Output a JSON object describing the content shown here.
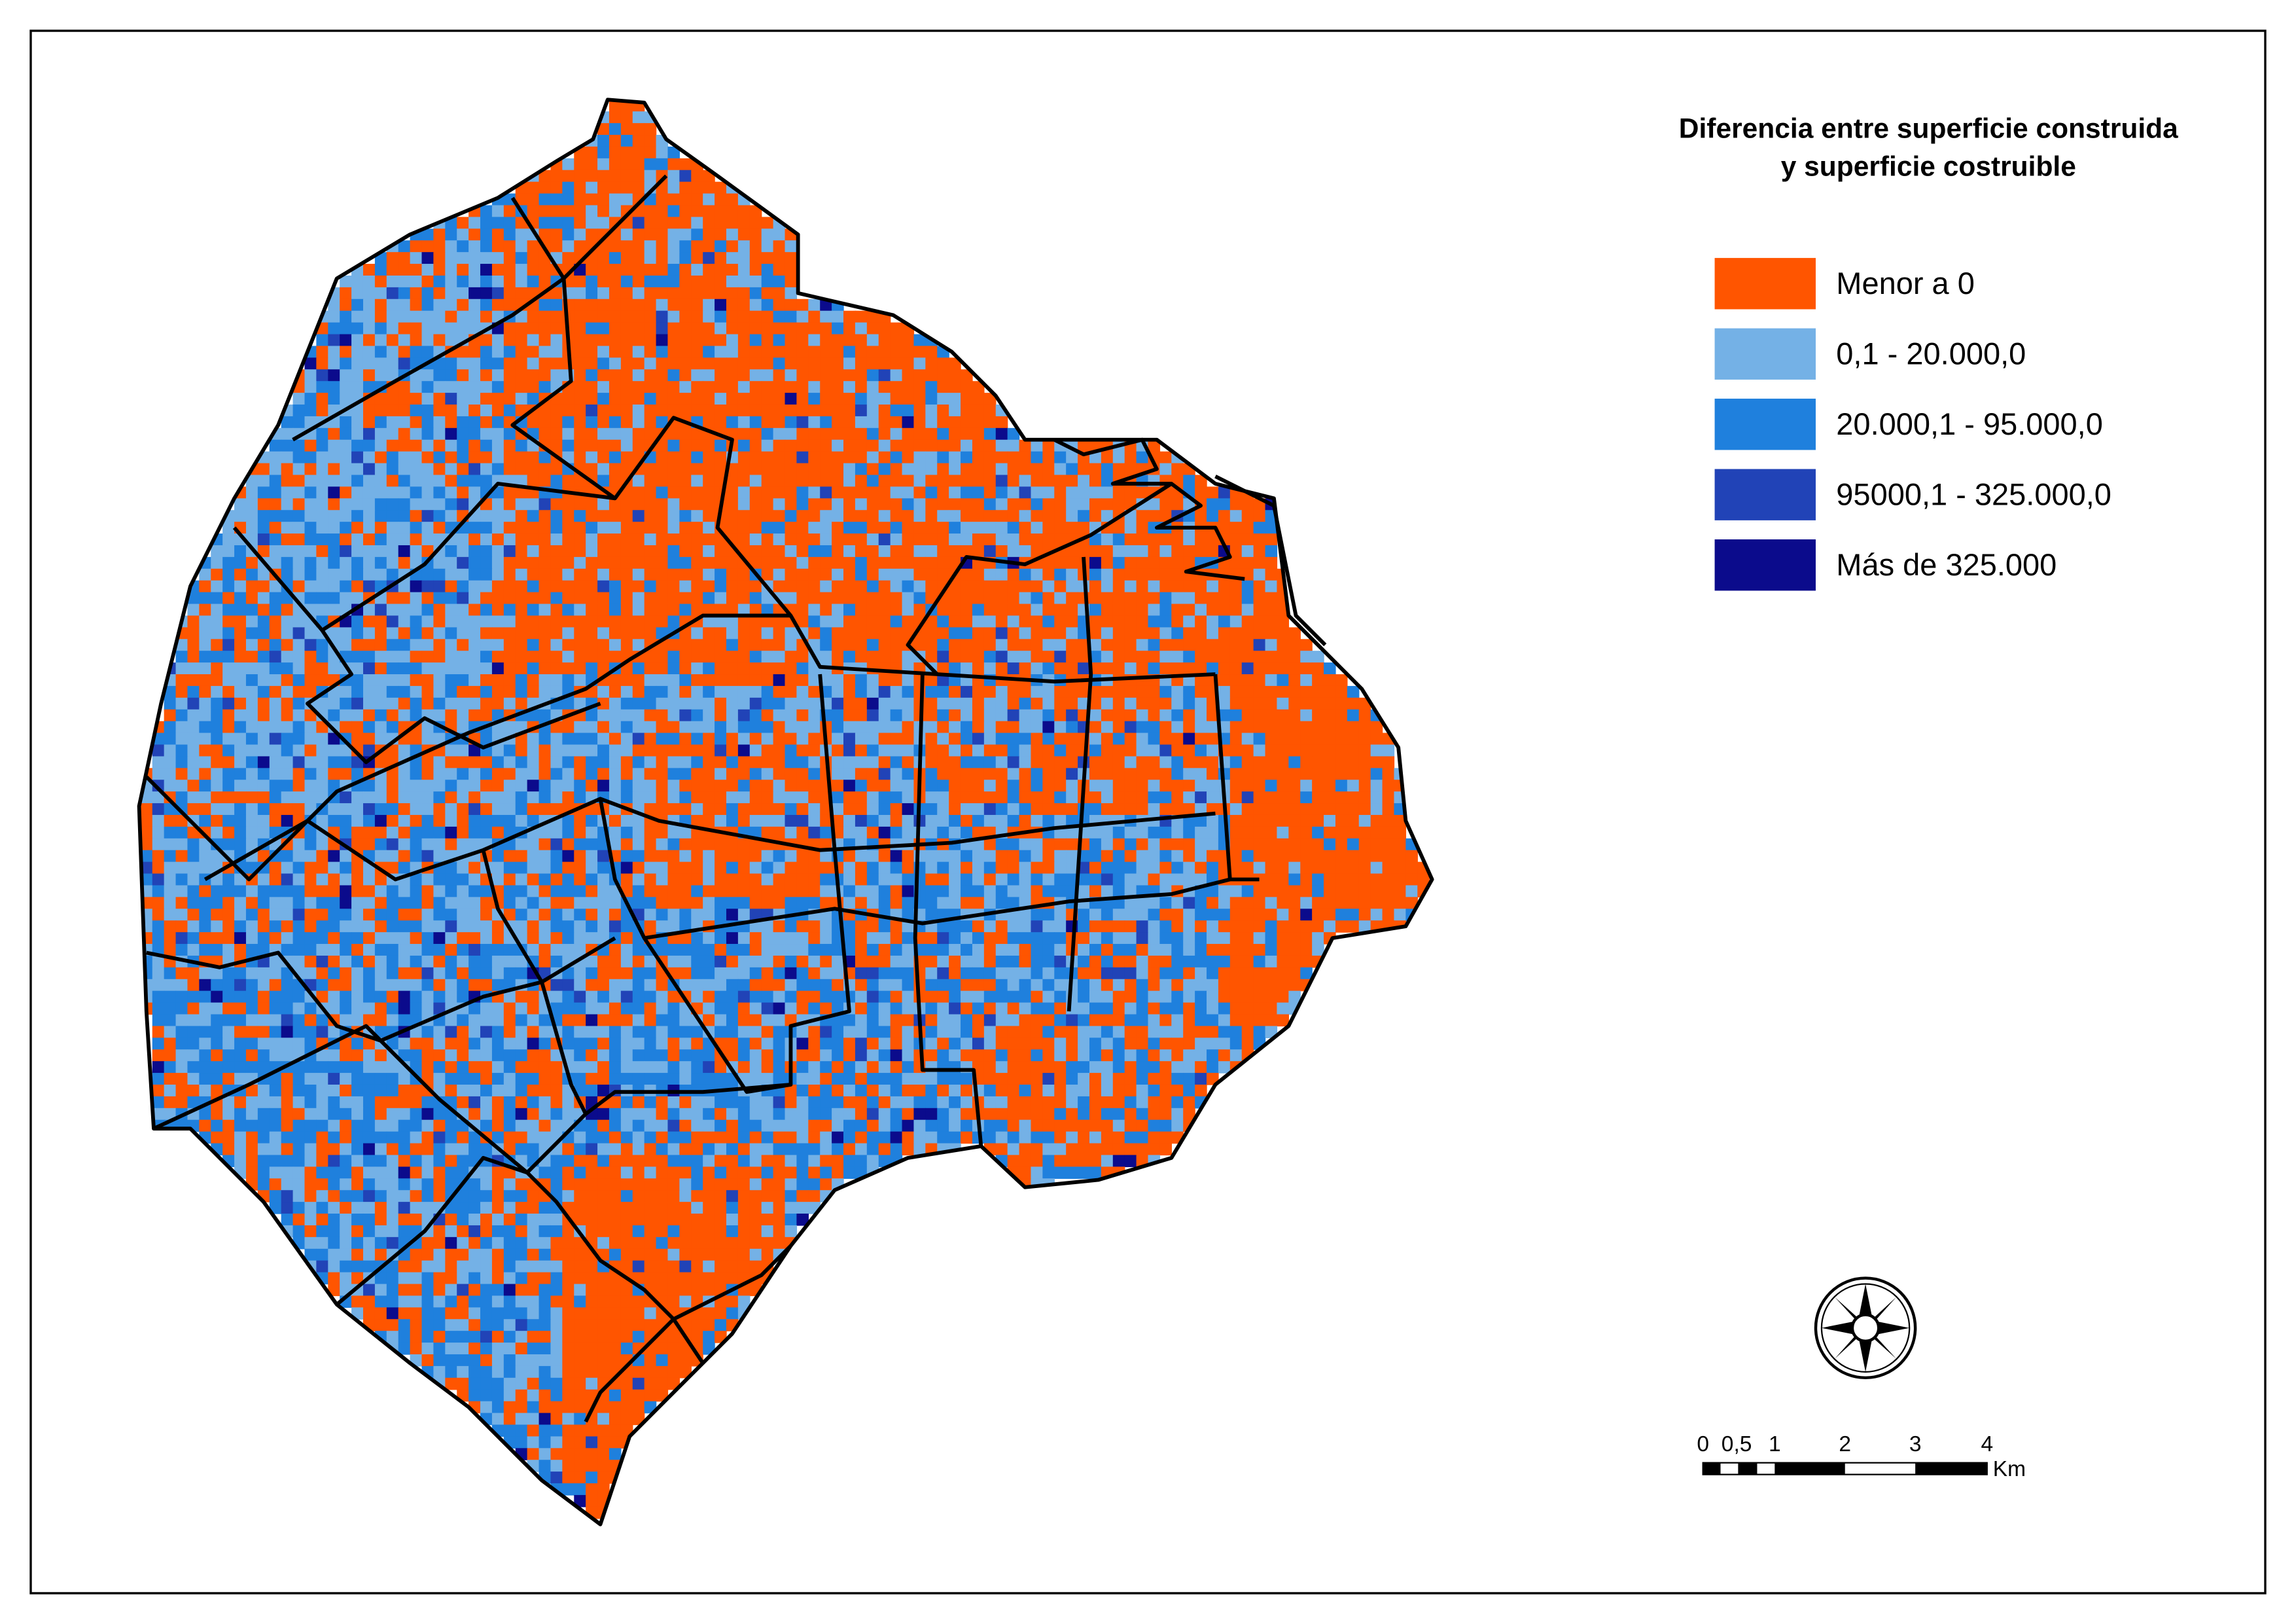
{
  "legend": {
    "title": [
      "Diferencia entre superficie construida",
      "y superficie costruible"
    ],
    "items": [
      {
        "label": "Menor a 0",
        "color": "#ff5500"
      },
      {
        "label": "0,1 - 20.000,0",
        "color": "#74b1e6"
      },
      {
        "label": "20.000,1 - 95.000,0",
        "color": "#1f80dd"
      },
      {
        "label": "95000,1 - 325.000,0",
        "color": "#2143b7"
      },
      {
        "label": "Más de 325.000",
        "color": "#0b0b8c"
      }
    ]
  },
  "scale_bar": {
    "labels": [
      "0",
      "0,5",
      "1",
      "2",
      "3",
      "4"
    ],
    "unit": "Km"
  }
}
